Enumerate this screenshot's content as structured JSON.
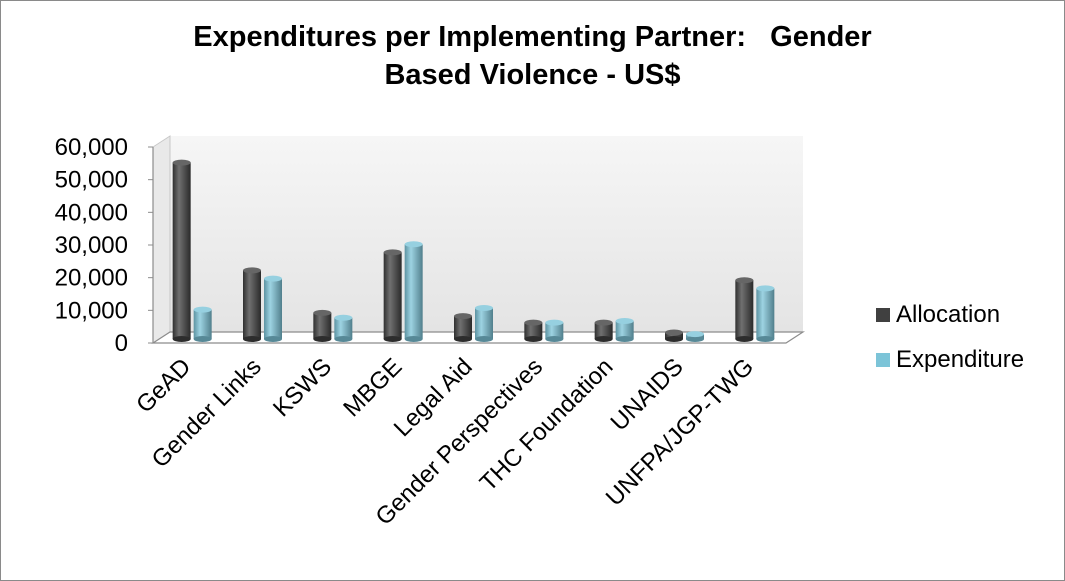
{
  "chart_data": {
    "type": "bar",
    "title": [
      "Expenditures per Implementing Partner:   Gender",
      "Based Violence - US$"
    ],
    "categories": [
      "GeAD",
      "Gender Links",
      "KSWS",
      "MBGE",
      "Legal Aid",
      "Gender Perspectives",
      "THC Foundation",
      "UNAIDS",
      "UNFPA/JGP-TWG"
    ],
    "series": [
      {
        "name": "Allocation",
        "color": "#404040",
        "values": [
          54000,
          21000,
          8000,
          26500,
          7000,
          5000,
          5000,
          2000,
          18000
        ]
      },
      {
        "name": "Expenditure",
        "color": "#7cc4d8",
        "values": [
          9000,
          18500,
          6500,
          29000,
          9500,
          5000,
          5500,
          1500,
          15500
        ]
      }
    ],
    "y_ticks": [
      "0",
      "10,000",
      "20,000",
      "30,000",
      "40,000",
      "50,000",
      "60,000"
    ],
    "ylim": [
      0,
      60000
    ],
    "grid": false,
    "legend_position": "right"
  }
}
